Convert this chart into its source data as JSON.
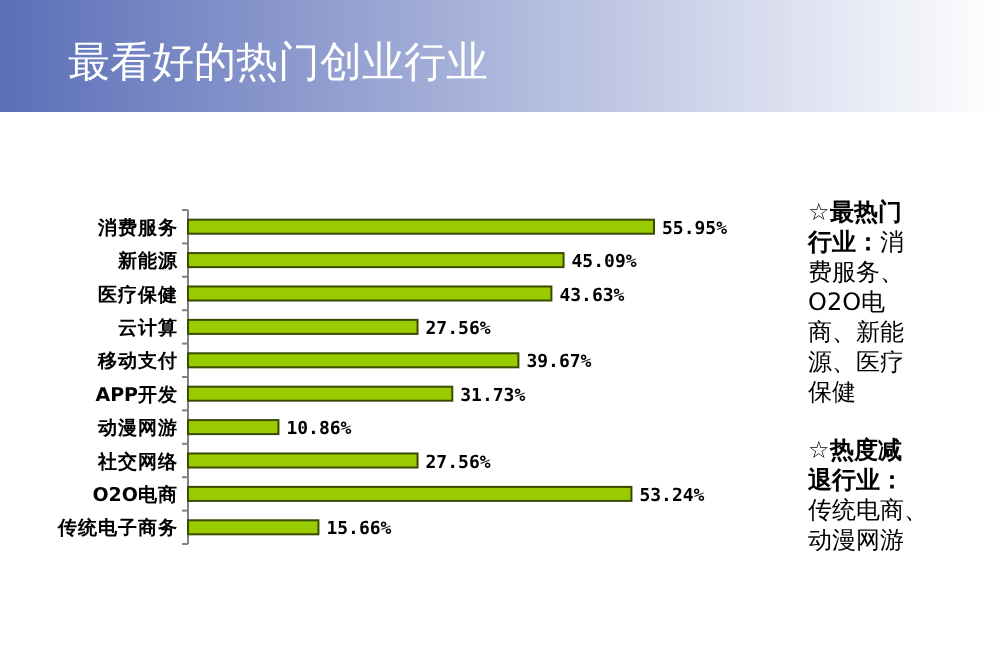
{
  "chart_data": {
    "type": "bar",
    "orientation": "horizontal",
    "title": "最看好的热门创业行业",
    "categories": [
      "消费服务",
      "新能源",
      "医疗保健",
      "云计算",
      "移动支付",
      "APP开发",
      "动漫网游",
      "社交网络",
      "O2O电商",
      "传统电子商务"
    ],
    "values": [
      55.95,
      45.09,
      43.63,
      27.56,
      39.67,
      31.73,
      10.86,
      27.56,
      53.24,
      15.66
    ],
    "value_labels": [
      "55.95%",
      "45.09%",
      "43.63%",
      "27.56%",
      "39.67%",
      "31.73%",
      "10.86%",
      "27.56%",
      "53.24%",
      "15.66%"
    ],
    "color": "#99cc00",
    "annotations": [
      "**☆最热门行业：**消费服务、O2O电商、新能源、医疗保健",
      "**☆热度减退行业：**传统电商、动漫网游"
    ]
  }
}
